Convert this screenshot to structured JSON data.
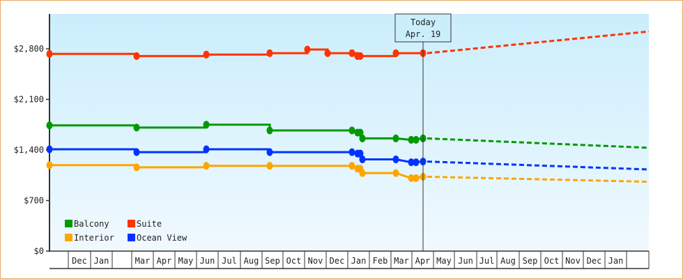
{
  "chart_data": {
    "type": "line",
    "title": "",
    "xlabel": "",
    "ylabel": "",
    "ylim": [
      0,
      3500
    ],
    "y_ticks": [
      {
        "value": 0,
        "label": "$0"
      },
      {
        "value": 700,
        "label": "$700"
      },
      {
        "value": 1400,
        "label": "$1,400"
      },
      {
        "value": 2100,
        "label": "$2,100"
      },
      {
        "value": 2800,
        "label": "$2,800"
      }
    ],
    "x_month_labels": [
      "",
      "Dec",
      "Jan",
      "",
      "Mar",
      "Apr",
      "May",
      "Jun",
      "Jul",
      "Aug",
      "Sep",
      "Oct",
      "Nov",
      "Dec",
      "Jan",
      "Feb",
      "Mar",
      "Apr",
      "May",
      "Jun",
      "Jul",
      "Aug",
      "Sep",
      "Oct",
      "Nov",
      "Dec",
      "Jan",
      ""
    ],
    "x_month_edges": [
      71,
      98,
      130,
      161,
      189,
      220,
      251,
      282,
      313,
      345,
      376,
      406,
      437,
      468,
      499,
      530,
      561,
      591,
      622,
      652,
      684,
      713,
      745,
      776,
      807,
      837,
      868,
      899,
      931
    ],
    "today_marker": {
      "label_line1": "Today",
      "label_line2": "Apr. 19",
      "x": 607
    },
    "legend": [
      {
        "name": "Balcony",
        "color": "#009900"
      },
      {
        "name": "Suite",
        "color": "#ff3300"
      },
      {
        "name": "Interior",
        "color": "#ffa500"
      },
      {
        "name": "Ocean View",
        "color": "#0033ff"
      }
    ],
    "series": [
      {
        "name": "Suite",
        "color": "#ff3300",
        "historical": [
          [
            71,
            2730
          ],
          [
            196,
            2730
          ],
          [
            196,
            2700
          ],
          [
            296,
            2700
          ],
          [
            296,
            2720
          ],
          [
            387,
            2720
          ],
          [
            387,
            2740
          ],
          [
            441,
            2740
          ],
          [
            441,
            2790
          ],
          [
            470,
            2790
          ],
          [
            470,
            2740
          ],
          [
            505,
            2740
          ],
          [
            513,
            2740
          ],
          [
            513,
            2700
          ],
          [
            568,
            2700
          ],
          [
            568,
            2740
          ],
          [
            607,
            2740
          ]
        ],
        "markers": [
          71,
          196,
          296,
          387,
          441,
          470,
          505,
          513,
          517,
          568,
          607
        ],
        "forecast_start": 2740,
        "forecast_end": 3040
      },
      {
        "name": "Balcony",
        "color": "#009900",
        "historical": [
          [
            71,
            1740
          ],
          [
            196,
            1740
          ],
          [
            196,
            1710
          ],
          [
            296,
            1710
          ],
          [
            296,
            1750
          ],
          [
            387,
            1750
          ],
          [
            387,
            1670
          ],
          [
            505,
            1670
          ],
          [
            513,
            1640
          ],
          [
            520,
            1560
          ],
          [
            568,
            1560
          ],
          [
            590,
            1540
          ],
          [
            607,
            1560
          ]
        ],
        "markers": [
          71,
          196,
          296,
          387,
          505,
          513,
          517,
          520,
          568,
          590,
          597,
          607
        ],
        "forecast_start": 1560,
        "forecast_end": 1430
      },
      {
        "name": "Ocean View",
        "color": "#0033ff",
        "historical": [
          [
            71,
            1410
          ],
          [
            196,
            1410
          ],
          [
            196,
            1370
          ],
          [
            296,
            1370
          ],
          [
            296,
            1410
          ],
          [
            387,
            1410
          ],
          [
            387,
            1370
          ],
          [
            505,
            1370
          ],
          [
            513,
            1350
          ],
          [
            520,
            1270
          ],
          [
            568,
            1270
          ],
          [
            590,
            1230
          ],
          [
            607,
            1240
          ]
        ],
        "markers": [
          71,
          196,
          296,
          387,
          505,
          513,
          517,
          520,
          568,
          590,
          597,
          607
        ],
        "forecast_start": 1240,
        "forecast_end": 1130
      },
      {
        "name": "Interior",
        "color": "#ffa500",
        "historical": [
          [
            71,
            1190
          ],
          [
            196,
            1190
          ],
          [
            196,
            1160
          ],
          [
            296,
            1160
          ],
          [
            296,
            1180
          ],
          [
            387,
            1180
          ],
          [
            387,
            1180
          ],
          [
            505,
            1180
          ],
          [
            513,
            1140
          ],
          [
            520,
            1080
          ],
          [
            568,
            1080
          ],
          [
            590,
            1010
          ],
          [
            607,
            1030
          ]
        ],
        "markers": [
          71,
          196,
          296,
          387,
          505,
          513,
          517,
          520,
          568,
          590,
          597,
          607
        ],
        "forecast_start": 1030,
        "forecast_end": 960
      }
    ]
  }
}
